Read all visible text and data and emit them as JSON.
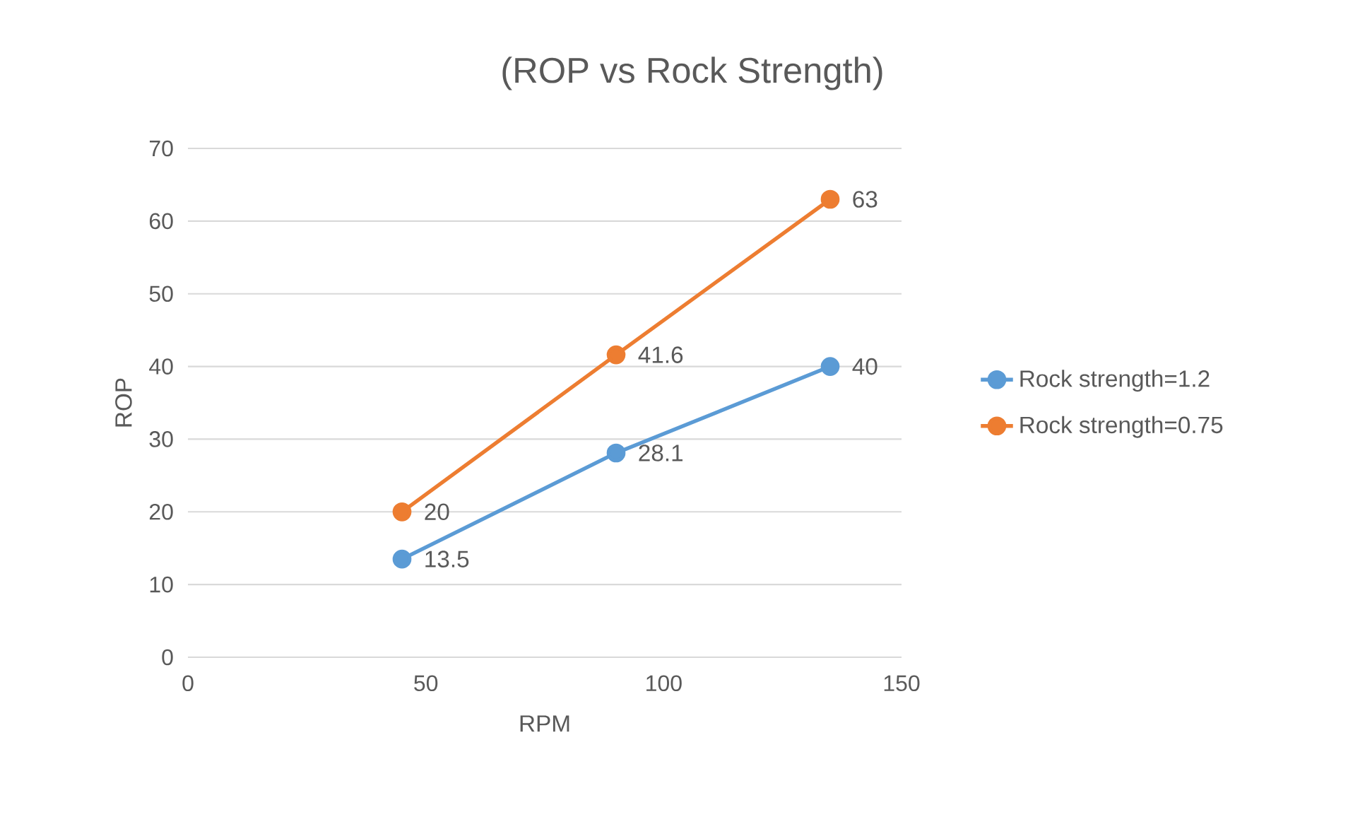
{
  "chart_data": {
    "type": "line",
    "title": "(ROP vs Rock Strength)",
    "xlabel": "RPM",
    "ylabel": "ROP",
    "x": [
      45,
      90,
      135
    ],
    "series": [
      {
        "name": "Rock strength=1.2",
        "color": "#5b9bd5",
        "values": [
          13.5,
          28.1,
          40
        ]
      },
      {
        "name": "Rock strength=0.75",
        "color": "#ed7d31",
        "values": [
          20,
          41.6,
          63
        ]
      }
    ],
    "xlim": [
      0,
      150
    ],
    "xticks": [
      0,
      50,
      100,
      150
    ],
    "ylim": [
      0,
      70
    ],
    "yticks": [
      0,
      10,
      20,
      30,
      40,
      50,
      60,
      70
    ],
    "grid": "y",
    "legend": "right",
    "marker": "circle",
    "line_style": "solid",
    "data_labels": true
  }
}
